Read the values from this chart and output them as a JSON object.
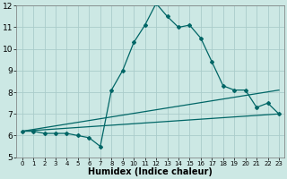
{
  "xlabel": "Humidex (Indice chaleur)",
  "background_color": "#cce8e4",
  "grid_color": "#aaccca",
  "line_color": "#006666",
  "xlim": [
    -0.5,
    23.5
  ],
  "ylim": [
    5,
    12
  ],
  "yticks": [
    5,
    6,
    7,
    8,
    9,
    10,
    11,
    12
  ],
  "xticks": [
    0,
    1,
    2,
    3,
    4,
    5,
    6,
    7,
    8,
    9,
    10,
    11,
    12,
    13,
    14,
    15,
    16,
    17,
    18,
    19,
    20,
    21,
    22,
    23
  ],
  "series1_x": [
    0,
    1,
    2,
    3,
    4,
    5,
    6,
    7,
    8,
    9,
    10,
    11,
    12,
    13,
    14,
    15,
    16,
    17,
    18,
    19,
    20,
    21,
    22,
    23
  ],
  "series1_y": [
    6.2,
    6.2,
    6.1,
    6.1,
    6.1,
    6.0,
    5.9,
    5.5,
    8.1,
    9.0,
    10.3,
    11.1,
    12.1,
    11.5,
    11.0,
    11.1,
    10.5,
    9.4,
    8.3,
    8.1,
    8.1,
    7.3,
    7.5,
    7.0
  ],
  "series2_x": [
    0,
    23
  ],
  "series2_y": [
    6.2,
    8.1
  ],
  "series3_x": [
    0,
    23
  ],
  "series3_y": [
    6.2,
    7.0
  ],
  "xlabel_fontsize": 7,
  "tick_fontsize_x": 5,
  "tick_fontsize_y": 6.5,
  "marker_size": 2.0
}
